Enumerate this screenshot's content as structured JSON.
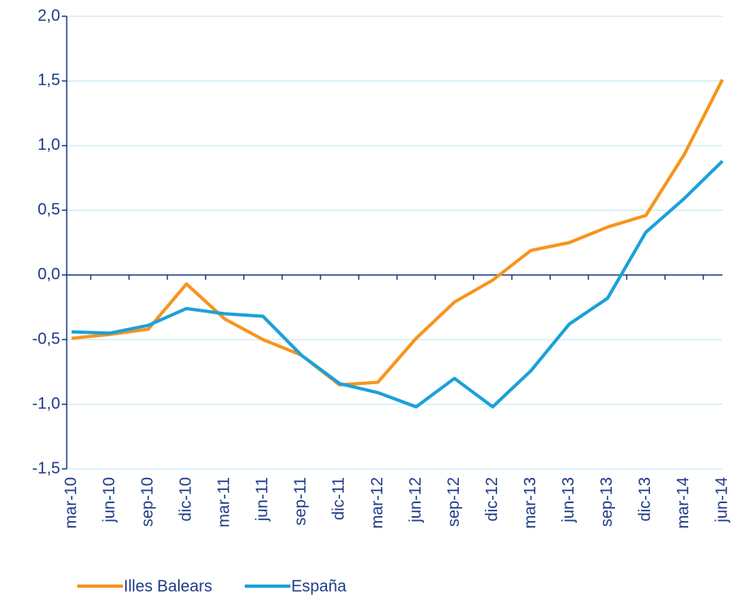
{
  "chart_data": {
    "type": "line",
    "categories": [
      "mar-10",
      "jun-10",
      "sep-10",
      "dic-10",
      "mar-11",
      "jun-11",
      "sep-11",
      "dic-11",
      "mar-12",
      "jun-12",
      "sep-12",
      "dic-12",
      "mar-13",
      "jun-13",
      "sep-13",
      "dic-13",
      "mar-14",
      "jun-14"
    ],
    "series": [
      {
        "name": "Illes Balears",
        "color": "#f7941d",
        "values": [
          -0.49,
          -0.46,
          -0.42,
          -0.07,
          -0.34,
          -0.5,
          -0.62,
          -0.85,
          -0.83,
          -0.49,
          -0.21,
          -0.04,
          0.19,
          0.25,
          0.37,
          0.46,
          0.93,
          1.51
        ]
      },
      {
        "name": "España",
        "color": "#1ba1d9",
        "values": [
          -0.44,
          -0.45,
          -0.39,
          -0.26,
          -0.3,
          -0.32,
          -0.62,
          -0.84,
          -0.91,
          -1.02,
          -0.8,
          -1.02,
          -0.74,
          -0.38,
          -0.18,
          0.33,
          0.59,
          0.88
        ]
      }
    ],
    "ylim": [
      -1.5,
      2.0
    ],
    "yticks": [
      {
        "value": -1.5,
        "label": "-1,5"
      },
      {
        "value": -1.0,
        "label": "-1,0"
      },
      {
        "value": -0.5,
        "label": "-0,5"
      },
      {
        "value": 0,
        "label": "0,0"
      },
      {
        "value": 0.5,
        "label": "0,5"
      },
      {
        "value": 1.0,
        "label": "1,0"
      },
      {
        "value": 1.5,
        "label": "1,5"
      },
      {
        "value": 2.0,
        "label": "2,0"
      }
    ],
    "grid": true
  }
}
